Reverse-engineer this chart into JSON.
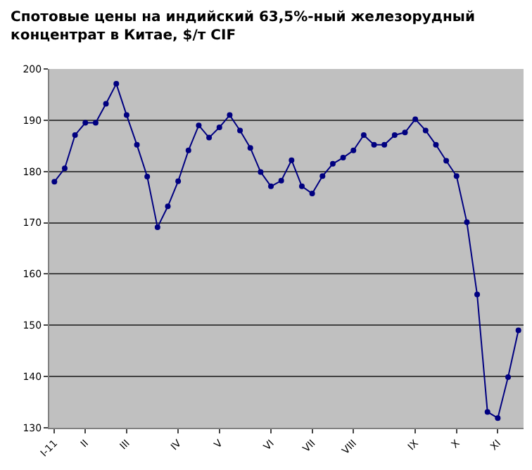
{
  "chart_data": {
    "type": "line",
    "title": "Спотовые цены на индийский 63,5%-ный железорудный\nконцентрат в Китае, $/т CIF",
    "categories": [
      "I-11",
      null,
      null,
      "II",
      null,
      null,
      null,
      "III",
      null,
      null,
      null,
      null,
      "IV",
      null,
      null,
      null,
      "V",
      null,
      null,
      null,
      null,
      "VI",
      null,
      null,
      null,
      "VII",
      null,
      null,
      null,
      "VIII",
      null,
      null,
      null,
      null,
      null,
      "IX",
      null,
      null,
      null,
      "X",
      null,
      null,
      null,
      "XI",
      null,
      null
    ],
    "series": [
      {
        "color": "#000080",
        "values": [
          178.0,
          180.6,
          187.1,
          189.5,
          189.5,
          193.2,
          197.1,
          191.0,
          185.2,
          179.0,
          169.1,
          173.2,
          178.1,
          184.1,
          189.0,
          186.6,
          188.6,
          191.0,
          188.0,
          184.6,
          179.9,
          177.1,
          178.2,
          182.2,
          177.1,
          175.7,
          179.1,
          181.5,
          182.7,
          184.1,
          187.1,
          185.2,
          185.2,
          187.1,
          187.6,
          190.2,
          188.0,
          185.2,
          182.1,
          179.1,
          170.1,
          156.0,
          133.1,
          131.9,
          139.9,
          149.0
        ]
      }
    ],
    "ylim": [
      130,
      200
    ],
    "yticks": [
      130,
      140,
      150,
      160,
      170,
      180,
      190,
      200
    ],
    "grid": "y",
    "marker": "circle",
    "line_style": "solid",
    "legend": false
  }
}
